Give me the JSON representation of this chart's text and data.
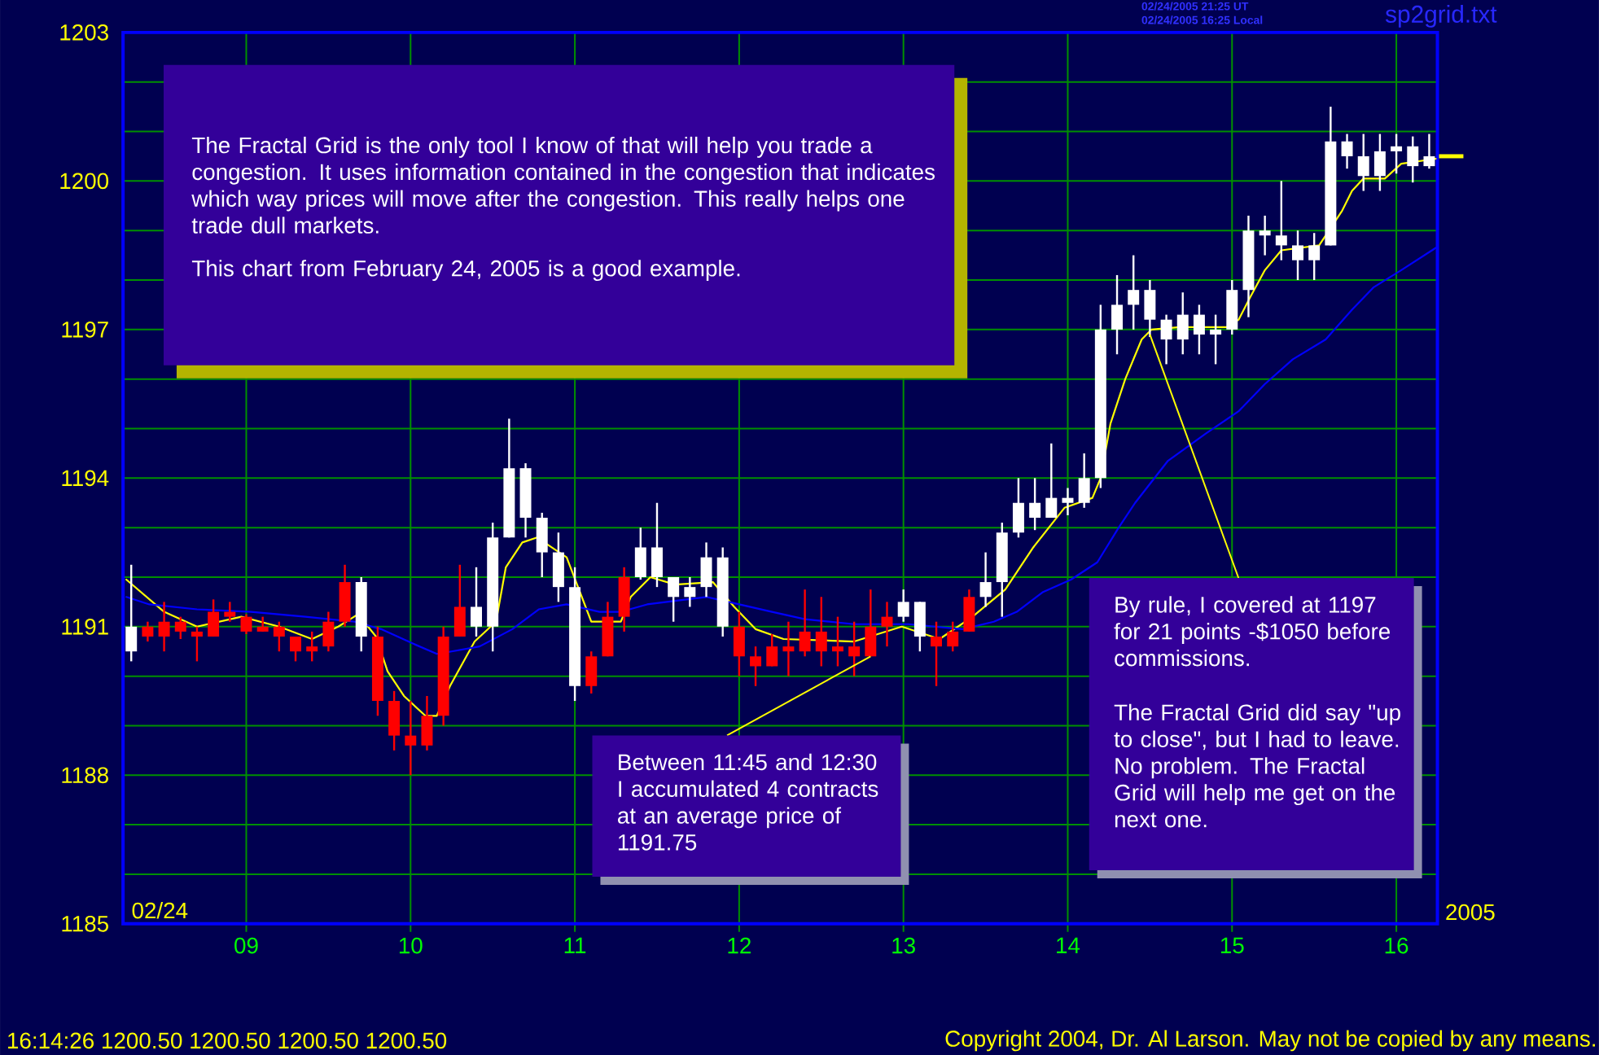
{
  "chart_data": {
    "type": "candlestick",
    "x": [
      8.3,
      8.4,
      8.5,
      8.6,
      8.7,
      8.8,
      8.9,
      9.0,
      9.1,
      9.2,
      9.3,
      9.4,
      9.5,
      9.6,
      9.7,
      9.8,
      9.9,
      10.0,
      10.1,
      10.2,
      10.3,
      10.4,
      10.5,
      10.6,
      10.7,
      10.8,
      10.9,
      11.0,
      11.1,
      11.2,
      11.3,
      11.4,
      11.5,
      11.6,
      11.7,
      11.8,
      11.9,
      12.0,
      12.1,
      12.2,
      12.3,
      12.4,
      12.5,
      12.6,
      12.7,
      12.8,
      12.9,
      13.0,
      13.1,
      13.2,
      13.3,
      13.4,
      13.5,
      13.6,
      13.7,
      13.8,
      13.9,
      14.0,
      14.1,
      14.2,
      14.3,
      14.4,
      14.5,
      14.6,
      14.7,
      14.8,
      14.9,
      15.0,
      15.1,
      15.2,
      15.3,
      15.4,
      15.5,
      15.6,
      15.7,
      15.8,
      15.9,
      16.0,
      16.1,
      16.2
    ],
    "ohlc": [
      [
        1190.5,
        1192.25,
        1190.3,
        1191.0
      ],
      [
        1191.0,
        1191.1,
        1190.7,
        1190.8
      ],
      [
        1191.1,
        1191.5,
        1190.5,
        1190.8
      ],
      [
        1191.1,
        1191.2,
        1190.75,
        1190.9
      ],
      [
        1190.9,
        1191.0,
        1190.3,
        1190.8
      ],
      [
        1191.3,
        1191.55,
        1190.8,
        1190.8
      ],
      [
        1191.3,
        1191.5,
        1191.1,
        1191.2
      ],
      [
        1191.2,
        1191.25,
        1190.85,
        1190.9
      ],
      [
        1191.0,
        1191.2,
        1190.9,
        1190.9
      ],
      [
        1191.0,
        1191.1,
        1190.5,
        1190.8
      ],
      [
        1190.8,
        1190.8,
        1190.3,
        1190.5
      ],
      [
        1190.6,
        1190.9,
        1190.3,
        1190.5
      ],
      [
        1191.1,
        1191.3,
        1190.5,
        1190.6
      ],
      [
        1191.9,
        1192.25,
        1191.0,
        1191.1
      ],
      [
        1190.8,
        1192.0,
        1190.5,
        1191.9
      ],
      [
        1190.8,
        1191.0,
        1189.2,
        1189.5
      ],
      [
        1189.5,
        1189.7,
        1188.5,
        1188.8
      ],
      [
        1188.8,
        1189.5,
        1188.0,
        1188.6
      ],
      [
        1189.2,
        1189.6,
        1188.5,
        1188.6
      ],
      [
        1190.8,
        1191.0,
        1189.0,
        1189.2
      ],
      [
        1191.4,
        1192.25,
        1190.8,
        1190.8
      ],
      [
        1191.0,
        1192.2,
        1190.8,
        1191.4
      ],
      [
        1191.0,
        1193.1,
        1190.5,
        1192.8
      ],
      [
        1192.8,
        1195.2,
        1192.8,
        1194.2
      ],
      [
        1193.2,
        1194.3,
        1192.8,
        1194.2
      ],
      [
        1192.5,
        1193.3,
        1192.0,
        1193.2
      ],
      [
        1191.8,
        1192.9,
        1191.5,
        1192.5
      ],
      [
        1189.8,
        1192.2,
        1189.5,
        1191.8
      ],
      [
        1190.4,
        1190.5,
        1189.65,
        1189.8
      ],
      [
        1191.2,
        1191.5,
        1190.4,
        1190.4
      ],
      [
        1192.0,
        1192.2,
        1190.9,
        1191.2
      ],
      [
        1192.0,
        1193.0,
        1191.95,
        1192.6
      ],
      [
        1192.0,
        1193.5,
        1191.8,
        1192.6
      ],
      [
        1191.6,
        1192.0,
        1191.1,
        1192.0
      ],
      [
        1191.6,
        1192.0,
        1191.4,
        1191.8
      ],
      [
        1191.8,
        1192.7,
        1191.6,
        1192.4
      ],
      [
        1191.0,
        1192.6,
        1190.8,
        1192.4
      ],
      [
        1191.0,
        1191.3,
        1190.0,
        1190.4
      ],
      [
        1190.4,
        1190.6,
        1189.8,
        1190.2
      ],
      [
        1190.6,
        1190.85,
        1190.2,
        1190.2
      ],
      [
        1190.6,
        1191.1,
        1190.0,
        1190.5
      ],
      [
        1190.9,
        1191.75,
        1190.4,
        1190.5
      ],
      [
        1190.9,
        1191.6,
        1190.2,
        1190.5
      ],
      [
        1190.6,
        1191.2,
        1190.2,
        1190.5
      ],
      [
        1190.6,
        1191.1,
        1190.0,
        1190.4
      ],
      [
        1191.0,
        1191.75,
        1190.4,
        1190.4
      ],
      [
        1191.2,
        1191.5,
        1190.6,
        1191.0
      ],
      [
        1191.2,
        1191.75,
        1191.1,
        1191.5
      ],
      [
        1190.8,
        1191.5,
        1190.5,
        1191.5
      ],
      [
        1190.8,
        1191.1,
        1189.8,
        1190.6
      ],
      [
        1190.9,
        1191.1,
        1190.5,
        1190.6
      ],
      [
        1191.6,
        1191.75,
        1190.9,
        1190.9
      ],
      [
        1191.6,
        1192.5,
        1191.4,
        1191.9
      ],
      [
        1191.9,
        1193.1,
        1191.2,
        1192.9
      ],
      [
        1192.9,
        1194.0,
        1192.8,
        1193.5
      ],
      [
        1193.2,
        1194.0,
        1192.95,
        1193.5
      ],
      [
        1193.2,
        1194.7,
        1193.2,
        1193.6
      ],
      [
        1193.5,
        1193.8,
        1193.25,
        1193.6
      ],
      [
        1193.5,
        1194.5,
        1193.4,
        1194.0
      ],
      [
        1194.0,
        1197.5,
        1193.8,
        1197.0
      ],
      [
        1197.0,
        1198.1,
        1196.5,
        1197.5
      ],
      [
        1197.5,
        1198.5,
        1197.0,
        1197.8
      ],
      [
        1197.2,
        1198.0,
        1196.85,
        1197.8
      ],
      [
        1196.8,
        1197.3,
        1196.3,
        1197.2
      ],
      [
        1196.8,
        1197.75,
        1196.5,
        1197.3
      ],
      [
        1196.9,
        1197.5,
        1196.5,
        1197.3
      ],
      [
        1196.9,
        1197.3,
        1196.3,
        1197.0
      ],
      [
        1197.0,
        1198.0,
        1196.9,
        1197.8
      ],
      [
        1197.8,
        1199.3,
        1197.25,
        1199.0
      ],
      [
        1198.9,
        1199.3,
        1198.5,
        1199.0
      ],
      [
        1198.7,
        1200.0,
        1198.4,
        1198.9
      ],
      [
        1198.4,
        1199.0,
        1198.0,
        1198.7
      ],
      [
        1198.4,
        1198.95,
        1198.0,
        1198.7
      ],
      [
        1198.7,
        1201.5,
        1198.7,
        1200.8
      ],
      [
        1200.5,
        1200.95,
        1200.25,
        1200.8
      ],
      [
        1200.1,
        1200.95,
        1199.8,
        1200.5
      ],
      [
        1200.1,
        1200.95,
        1199.8,
        1200.6
      ],
      [
        1200.6,
        1200.95,
        1200.15,
        1200.7
      ],
      [
        1200.3,
        1200.9,
        1199.97,
        1200.7
      ],
      [
        1200.3,
        1200.95,
        1200.25,
        1200.5
      ]
    ],
    "colors": [
      "#ffffff",
      "#ff0000",
      "#ff0000",
      "#ff0000",
      "#ff0000",
      "#ff0000",
      "#ff0000",
      "#ff0000",
      "#ff0000",
      "#ff0000",
      "#ff0000",
      "#ff0000",
      "#ff0000",
      "#ff0000",
      "#ffffff",
      "#ff0000",
      "#ff0000",
      "#ff0000",
      "#ff0000",
      "#ff0000",
      "#ff0000",
      "#ffffff",
      "#ffffff",
      "#ffffff",
      "#ffffff",
      "#ffffff",
      "#ffffff",
      "#ffffff",
      "#ff0000",
      "#ff0000",
      "#ff0000",
      "#ffffff",
      "#ffffff",
      "#ffffff",
      "#ffffff",
      "#ffffff",
      "#ffffff",
      "#ff0000",
      "#ff0000",
      "#ff0000",
      "#ff0000",
      "#ff0000",
      "#ff0000",
      "#ff0000",
      "#ff0000",
      "#ff0000",
      "#ff0000",
      "#ffffff",
      "#ffffff",
      "#ff0000",
      "#ff0000",
      "#ff0000",
      "#ffffff",
      "#ffffff",
      "#ffffff",
      "#ffffff",
      "#ffffff",
      "#ffffff",
      "#ffffff",
      "#ffffff",
      "#ffffff",
      "#ffffff",
      "#ffffff",
      "#ffffff",
      "#ffffff",
      "#ffffff",
      "#ffffff",
      "#ffffff",
      "#ffffff",
      "#ffffff",
      "#ffffff",
      "#ffffff",
      "#ffffff",
      "#ffffff",
      "#ffffff",
      "#ffffff",
      "#ffffff",
      "#ffffff",
      "#ffffff",
      "#ffffff"
    ],
    "series": [
      {
        "type": "line",
        "color": "#ffff00",
        "x": [
          8.27,
          8.5,
          8.7,
          8.97,
          9.2,
          9.4,
          9.56,
          9.68,
          9.79,
          9.86,
          9.96,
          10.09,
          10.16,
          10.24,
          10.39,
          10.52,
          10.58,
          10.68,
          10.77,
          10.95,
          11.1,
          11.28,
          11.34,
          11.46,
          11.61,
          11.84,
          11.97,
          12.1,
          12.27,
          12.7,
          12.99,
          13.22,
          13.42,
          13.62,
          13.79,
          13.98,
          14.15,
          14.2,
          14.26,
          14.35,
          14.45,
          14.51,
          14.68,
          14.97,
          15.04,
          15.11,
          15.2,
          15.3,
          15.53,
          15.67,
          15.73,
          15.8,
          15.93,
          16.03,
          16.24
        ],
        "values": [
          1191.95,
          1191.3,
          1191.0,
          1191.2,
          1191.0,
          1190.75,
          1191.0,
          1191.25,
          1190.8,
          1190.1,
          1189.6,
          1189.2,
          1189.2,
          1189.8,
          1190.7,
          1191.1,
          1192.2,
          1192.7,
          1192.8,
          1192.4,
          1191.1,
          1191.1,
          1191.6,
          1192.0,
          1191.85,
          1191.9,
          1191.4,
          1190.95,
          1190.75,
          1190.7,
          1191.0,
          1190.75,
          1191.2,
          1191.75,
          1192.6,
          1193.4,
          1193.6,
          1194.0,
          1195.1,
          1196.0,
          1196.8,
          1197.0,
          1197.05,
          1197.05,
          1197.2,
          1197.65,
          1198.2,
          1198.6,
          1198.7,
          1199.4,
          1199.8,
          1200.05,
          1200.05,
          1200.35,
          1200.45
        ]
      },
      {
        "type": "line",
        "color": "#0000ff",
        "x": [
          8.27,
          8.41,
          8.7,
          9.03,
          9.36,
          9.66,
          9.82,
          10.02,
          10.16,
          10.25,
          10.42,
          10.62,
          10.78,
          10.95,
          11.15,
          11.28,
          11.44,
          11.8,
          12.0,
          12.2,
          12.4,
          12.7,
          13.03,
          13.36,
          13.55,
          13.69,
          13.85,
          14.02,
          14.18,
          14.31,
          14.41,
          14.61,
          14.84,
          15.04,
          15.2,
          15.37,
          15.57,
          15.73,
          15.86,
          16.03,
          16.24
        ],
        "values": [
          1191.6,
          1191.45,
          1191.35,
          1191.3,
          1191.2,
          1191.1,
          1190.95,
          1190.65,
          1190.45,
          1190.5,
          1190.6,
          1190.95,
          1191.35,
          1191.45,
          1191.3,
          1191.3,
          1191.45,
          1191.6,
          1191.45,
          1191.3,
          1191.15,
          1191.05,
          1191.05,
          1190.95,
          1191.1,
          1191.3,
          1191.7,
          1191.95,
          1192.3,
          1193.0,
          1193.5,
          1194.35,
          1194.9,
          1195.35,
          1195.9,
          1196.4,
          1196.8,
          1197.4,
          1197.85,
          1198.2,
          1198.65
        ]
      }
    ],
    "xlim": [
      8.25,
      16.25
    ],
    "xticks": [
      {
        "value": 9,
        "label": "09"
      },
      10,
      11,
      12,
      13,
      14,
      15,
      16
    ],
    "ylim": [
      1185,
      1203
    ],
    "yticks": [
      1185,
      {
        "value": 1186,
        "label": null
      },
      {
        "value": 1187,
        "label": null
      },
      1188,
      {
        "value": 1189,
        "label": null
      },
      {
        "value": 1190,
        "label": null
      },
      1191,
      {
        "value": 1192,
        "label": null
      },
      {
        "value": 1193,
        "label": null
      },
      1194,
      {
        "value": 1195,
        "label": null
      },
      {
        "value": 1196,
        "label": null
      },
      1197,
      {
        "value": 1198,
        "label": null
      },
      {
        "value": 1199,
        "label": null
      },
      1200,
      {
        "value": 1201,
        "label": null
      },
      {
        "value": 1202,
        "label": null
      },
      1203
    ],
    "grid": true,
    "annotations": [
      "02/24",
      "2005",
      "02/24/2005 21:25 UT",
      "02/24/2005 16:25 Local",
      "sp2grid.txt",
      "The Fractal Grid is the only tool I know of that will help you trade a congestion. It uses information contained in the congestion that indicates which way prices will move after the congestion. This really helps one trade dull markets.",
      "This chart from February 24, 2005 is a good example.",
      {
        "text": "Between 11:45 and 12:30 I accumulated 4 contracts at an average price of 1191.75",
        "x": 12.8,
        "y": 1190.4
      },
      {
        "text": "By rule, I covered at 1197 for 21 points -$1050 before commissions.",
        "x": 14.5,
        "y": 1196.9
      },
      "The Fractal Grid did say \"up to close\", but I had to leave. No problem. The Fractal Grid will help me get on the next one.",
      "16:14:26 1200.50 1200.50 1200.50 1200.50",
      "Copyright 2004, Dr. Al Larson. May not be copied by any means."
    ]
  }
}
